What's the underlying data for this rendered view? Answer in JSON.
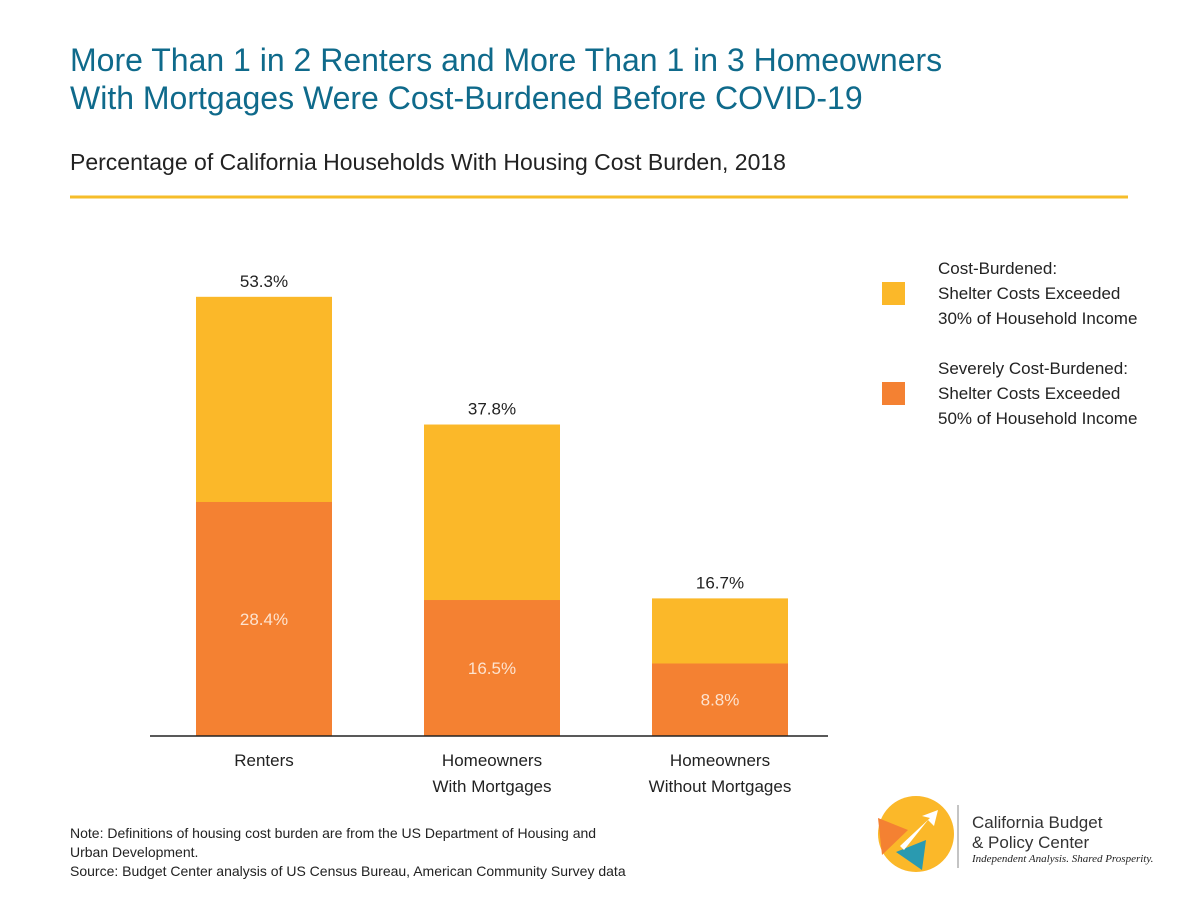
{
  "title": "More Than 1 in 2 Renters and More Than 1 in 3 Homeowners\nWith Mortgages Were Cost-Burdened Before COVID-19",
  "subtitle": "Percentage of California Households With Housing Cost Burden, 2018",
  "chart_data": {
    "type": "bar",
    "overlap": true,
    "categories": [
      "Renters",
      "Homeowners\nWith Mortgages",
      "Homeowners\nWithout Mortgages"
    ],
    "series": [
      {
        "name": "Cost-Burdened:\nShelter Costs Exceeded\n30% of Household Income",
        "color": "#fbb829",
        "values": [
          53.3,
          37.8,
          16.7
        ],
        "value_labels": [
          "53.3%",
          "37.8%",
          "16.7%"
        ]
      },
      {
        "name": "Severely Cost-Burdened:\nShelter Costs Exceeded\n50% of Household Income",
        "color": "#f48132",
        "values": [
          28.4,
          16.5,
          8.8
        ],
        "value_labels": [
          "28.4%",
          "16.5%",
          "8.8%"
        ]
      }
    ],
    "legend": "right"
  },
  "notes": [
    "Note: Definitions of housing cost burden are from the US Department of Housing and",
    "Urban Development.",
    "Source: Budget Center analysis of US Census Bureau, American Community Survey data"
  ],
  "logo": {
    "name": "California Budget\n& Policy Center",
    "tagline": "Independent Analysis. Shared Prosperity."
  }
}
